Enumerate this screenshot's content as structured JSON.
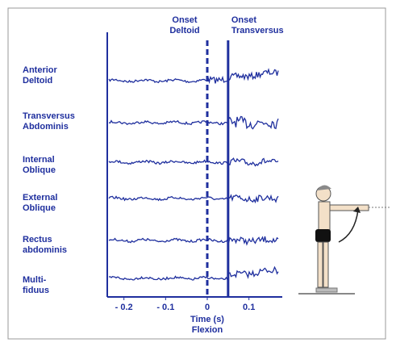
{
  "chart_data": {
    "type": "emg",
    "muscles": [
      [
        "Anterior",
        "Deltoid"
      ],
      [
        "Transversus",
        "Abdominis"
      ],
      [
        "Internal",
        "Oblique"
      ],
      [
        "External",
        "Oblique"
      ],
      [
        "Rectus",
        "abdominis"
      ],
      [
        "Multi-",
        "fiduus"
      ]
    ],
    "onsets": [
      {
        "label": [
          "Onset",
          "Deltoid"
        ],
        "x": 0,
        "style": "dashed"
      },
      {
        "label": [
          "Onset",
          "Transversus"
        ],
        "x": 0.05,
        "style": "solid"
      }
    ],
    "xlim": [
      -0.24,
      0.18
    ],
    "xticks": [
      {
        "value": -0.2,
        "label": "- 0.2"
      },
      {
        "value": -0.1,
        "label": "- 0.1"
      },
      0,
      0.1
    ],
    "xlabel": [
      "Time (s)",
      "Flexion"
    ],
    "color": "#1f2f9e"
  }
}
